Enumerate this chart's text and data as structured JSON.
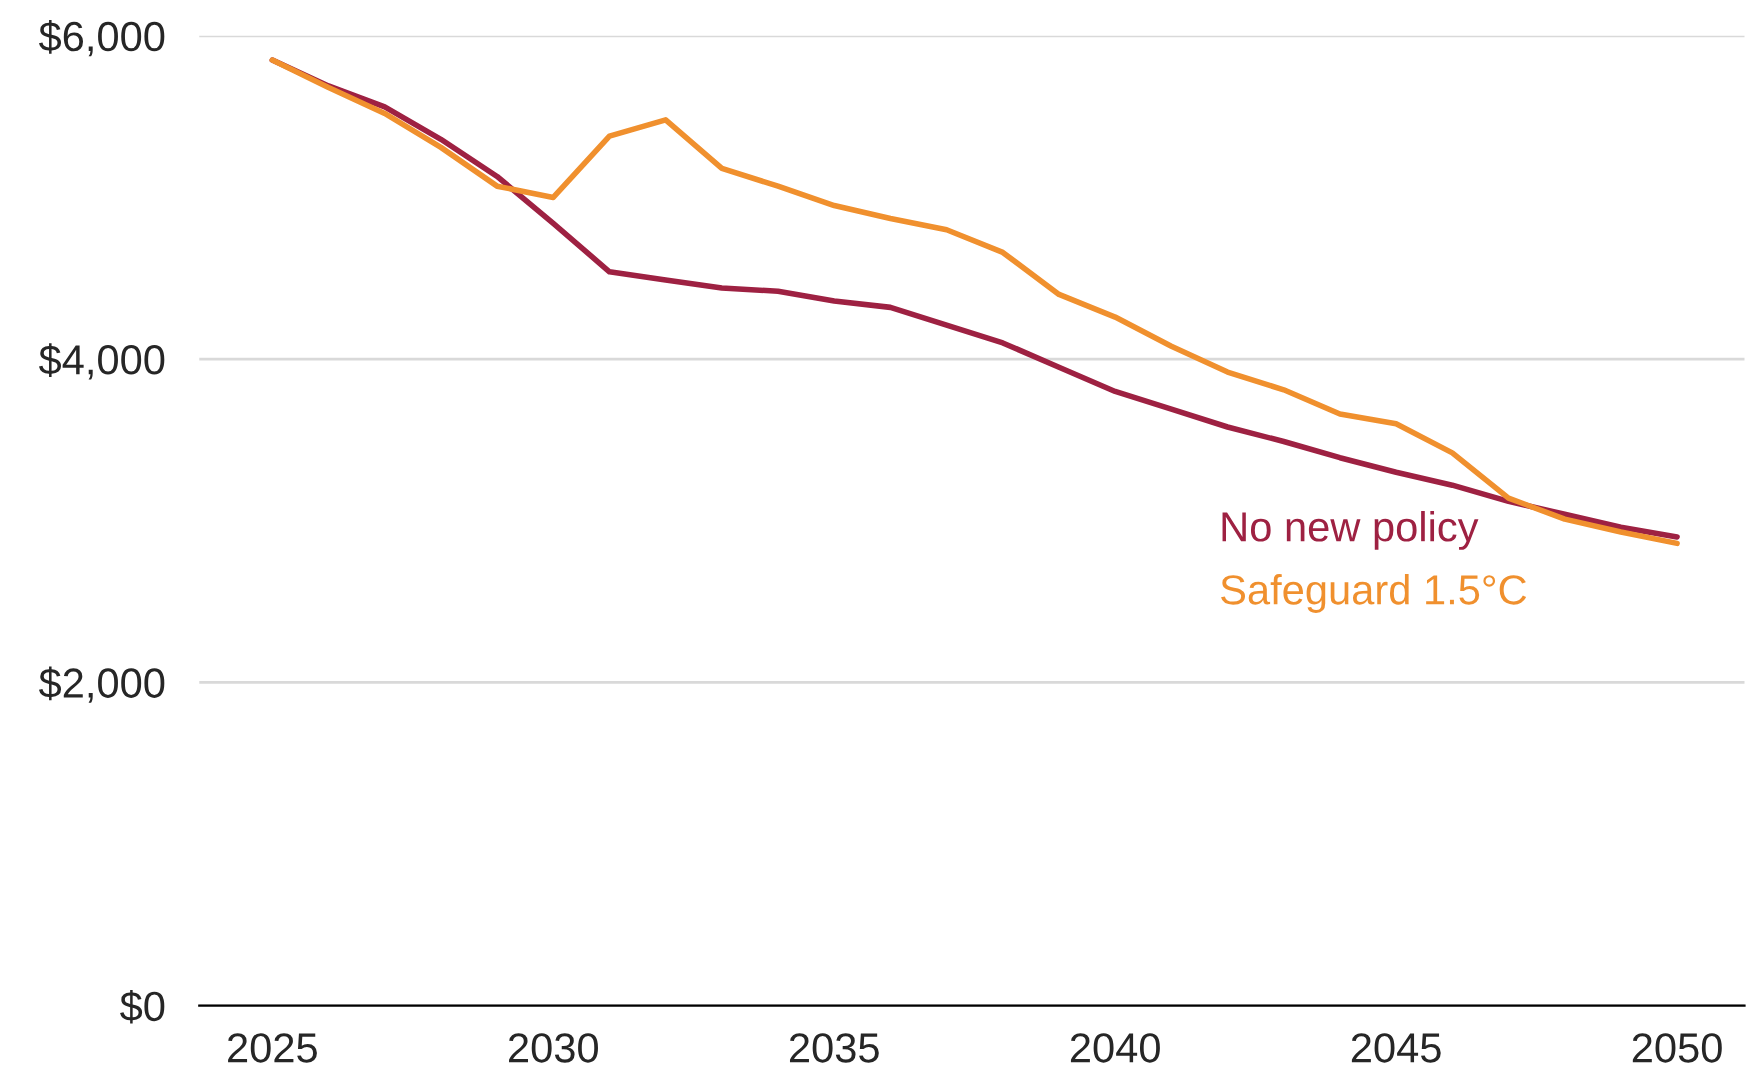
{
  "chart_data": {
    "type": "line",
    "x": [
      2025,
      2026,
      2027,
      2028,
      2029,
      2030,
      2031,
      2032,
      2033,
      2034,
      2035,
      2036,
      2037,
      2038,
      2039,
      2040,
      2041,
      2042,
      2043,
      2044,
      2045,
      2046,
      2047,
      2048,
      2049,
      2050
    ],
    "series": [
      {
        "name": "No new policy",
        "color": "#9e2142",
        "values": [
          5850,
          5690,
          5560,
          5360,
          5130,
          4840,
          4540,
          4490,
          4440,
          4420,
          4360,
          4320,
          4210,
          4100,
          3950,
          3800,
          3690,
          3580,
          3490,
          3390,
          3300,
          3220,
          3120,
          3040,
          2960,
          2900
        ]
      },
      {
        "name": "Safeguard 1.5°C",
        "color": "#f0902e",
        "values": [
          5850,
          5680,
          5520,
          5310,
          5070,
          5000,
          5380,
          5480,
          5180,
          5070,
          4950,
          4870,
          4800,
          4660,
          4400,
          4260,
          4080,
          3920,
          3810,
          3660,
          3600,
          3420,
          3140,
          3010,
          2930,
          2860
        ]
      }
    ],
    "xlim": [
      2023.7,
      2051.2
    ],
    "xticks": [
      2025,
      2030,
      2035,
      2040,
      2045,
      2050
    ],
    "ylim": [
      0,
      6000
    ],
    "yticks": [
      {
        "value": 0,
        "label": "$0"
      },
      {
        "value": 2000,
        "label": "$2,000"
      },
      {
        "value": 4000,
        "label": "$4,000"
      },
      {
        "value": 6000,
        "label": "$6,000"
      }
    ],
    "grid": "y",
    "legend": false,
    "marker": "none",
    "line_style": "solid"
  }
}
